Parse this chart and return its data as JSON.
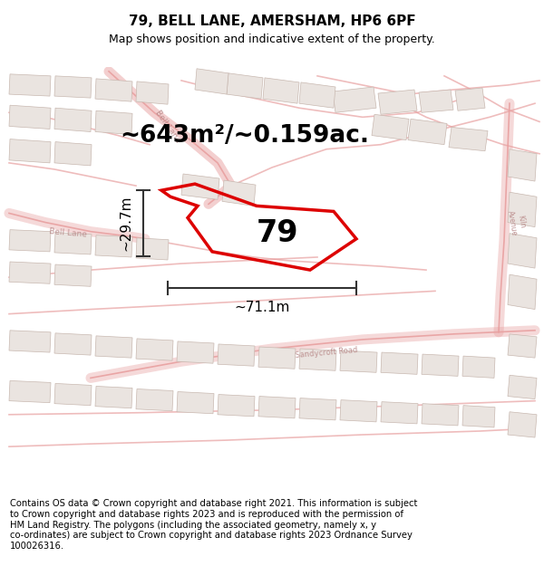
{
  "title": "79, BELL LANE, AMERSHAM, HP6 6PF",
  "subtitle": "Map shows position and indicative extent of the property.",
  "area_label": "~643m²/~0.159ac.",
  "property_number": "79",
  "width_label": "~71.1m",
  "height_label": "~29.7m",
  "footer": "Contains OS data © Crown copyright and database right 2021. This information is subject\nto Crown copyright and database rights 2023 and is reproduced with the permission of\nHM Land Registry. The polygons (including the associated geometry, namely x, y\nco-ordinates) are subject to Crown copyright and database rights 2023 Ordnance Survey\n100026316.",
  "bg_color": "#ffffff",
  "map_bg": "#f2eeeb",
  "road_color": "#e8a0a0",
  "plot_color": "#dd0000",
  "building_fc": "#eae4e0",
  "building_ec": "#c8b8b0",
  "title_fontsize": 11,
  "subtitle_fontsize": 9,
  "area_fontsize": 19,
  "number_fontsize": 24,
  "measure_fontsize": 11,
  "footer_fontsize": 7.2
}
